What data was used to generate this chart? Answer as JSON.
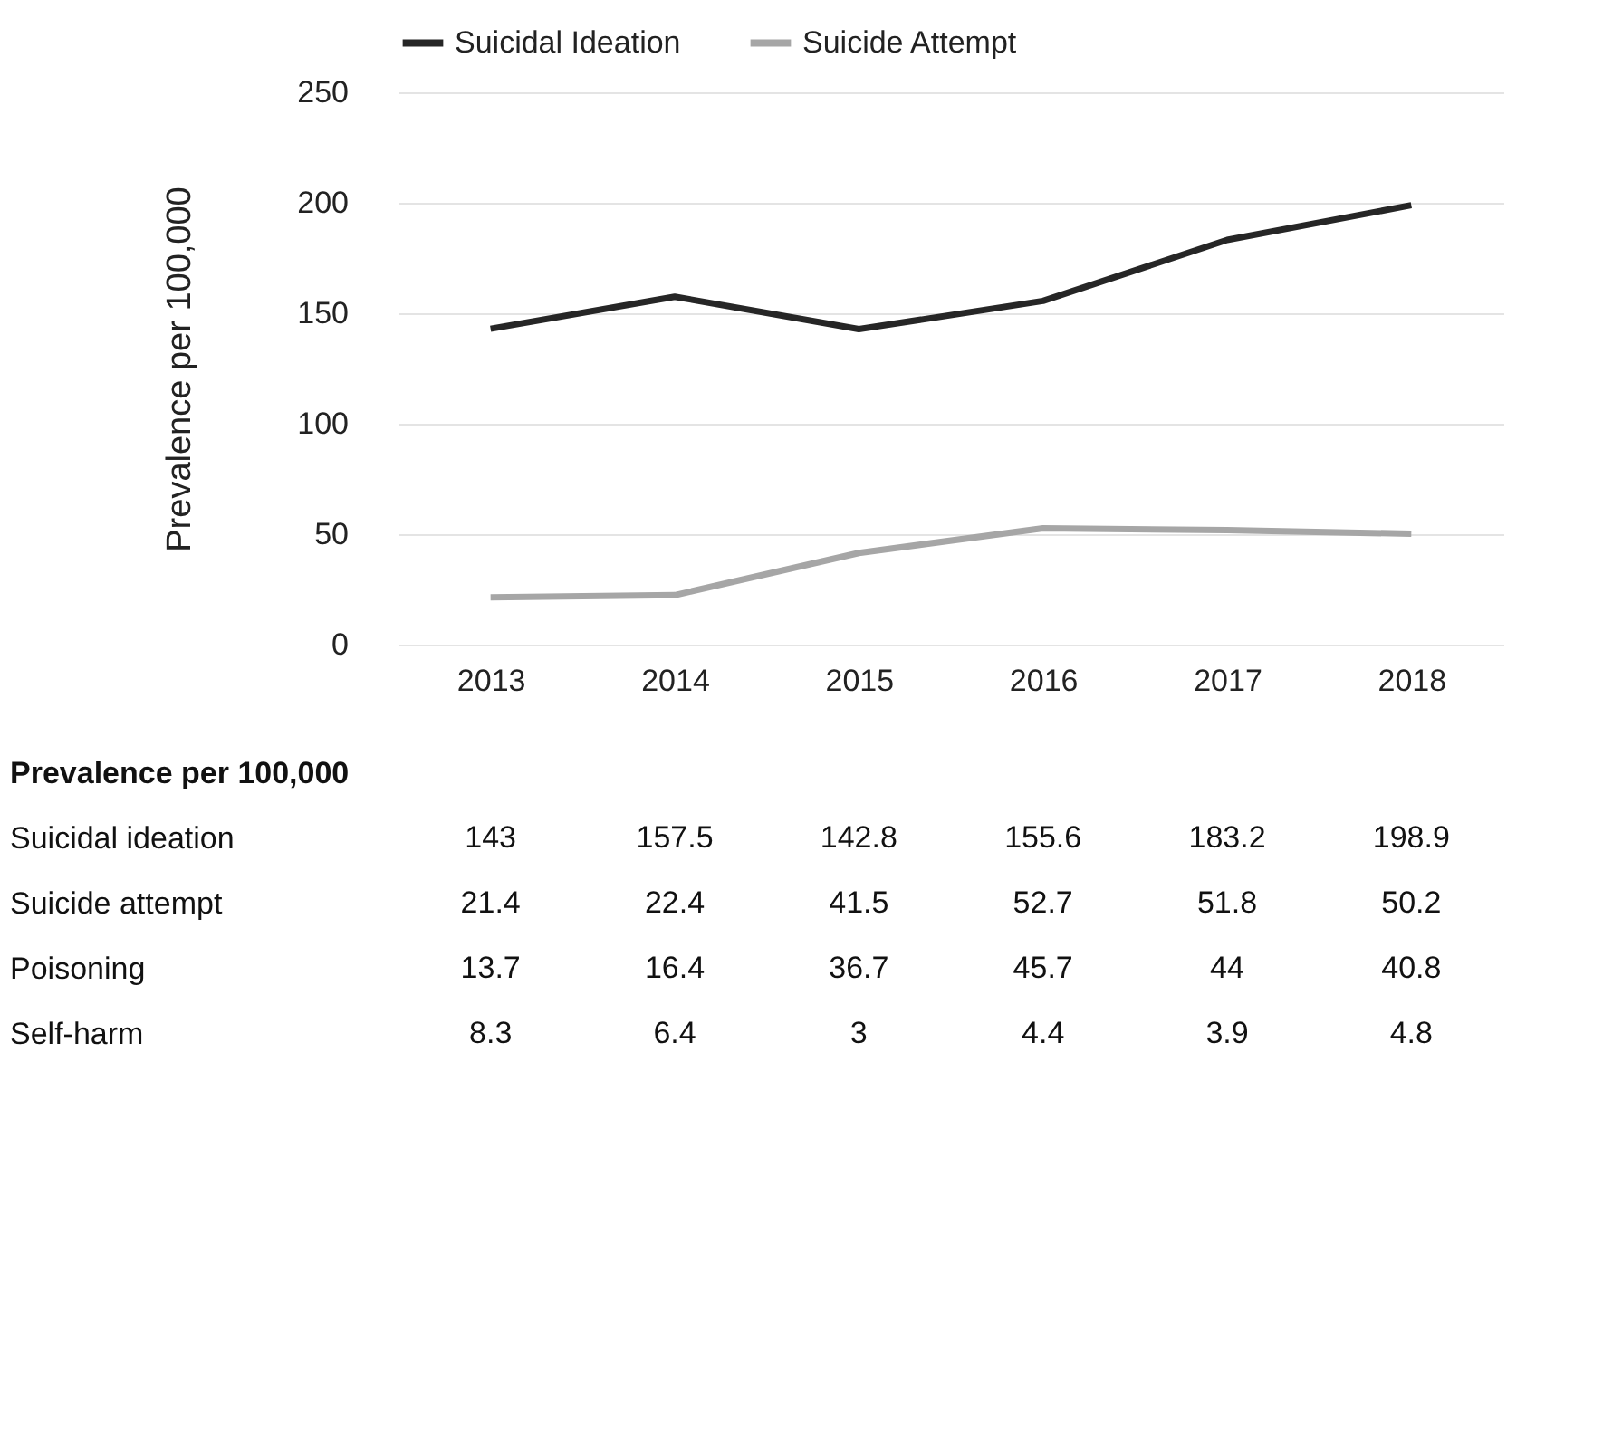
{
  "chart_data": {
    "type": "line",
    "ylabel": "Prevalence per 100,000",
    "categories": [
      "2013",
      "2014",
      "2015",
      "2016",
      "2017",
      "2018"
    ],
    "series": [
      {
        "name": "Suicidal Ideation",
        "color": "#262626",
        "values": [
          143,
          157.5,
          142.8,
          155.6,
          183.2,
          198.9
        ]
      },
      {
        "name": "Suicide Attempt",
        "color": "#a6a6a6",
        "values": [
          21.4,
          22.4,
          41.5,
          52.7,
          51.8,
          50.2
        ]
      }
    ],
    "ylim": [
      0,
      250
    ],
    "yticks": [
      0,
      50,
      100,
      150,
      200,
      250
    ],
    "grid": "y",
    "legend": "top",
    "data_labels": true,
    "annotations": [
      "Prevalence per 100,000",
      "Suicidal ideation",
      "Suicide attempt",
      "Poisoning",
      "13.7",
      "16.4",
      "36.7",
      "45.7",
      "44",
      "40.8",
      "Self-harm",
      "8.3",
      "6.4",
      "3",
      "4.4",
      "3.9",
      "4.8"
    ]
  }
}
